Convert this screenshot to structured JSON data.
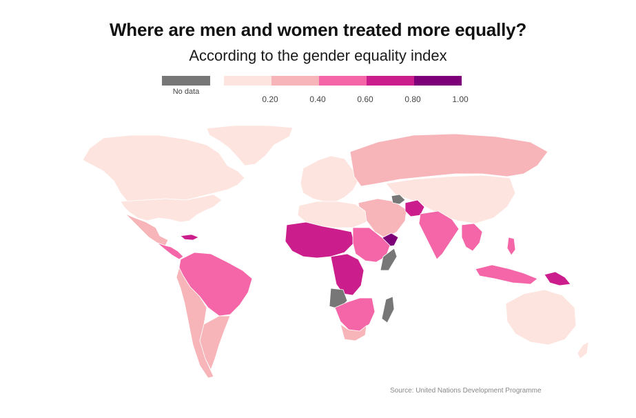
{
  "title": "Where are men and women treated more equally?",
  "subtitle": "According to the gender equality index",
  "legend": {
    "no_data_label": "No data",
    "no_data_color": "#777777",
    "bins": [
      {
        "color": "#fde4df"
      },
      {
        "color": "#f8b5b9"
      },
      {
        "color": "#f466a8"
      },
      {
        "color": "#cc1d8c"
      },
      {
        "color": "#7d0078"
      }
    ],
    "ticks": [
      "0.20",
      "0.40",
      "0.60",
      "0.80",
      "1.00"
    ]
  },
  "source": "Source: United Nations Development Programme"
}
